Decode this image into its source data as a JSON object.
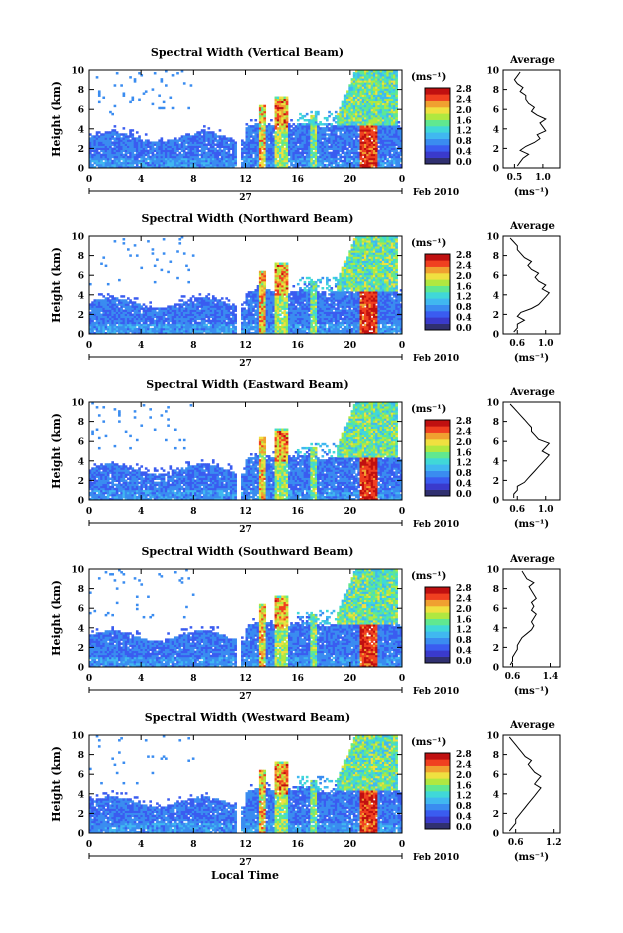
{
  "figure": {
    "colorbar_unit": "(ms⁻¹)",
    "colorbar_ticks": [
      "0.0",
      "0.4",
      "0.8",
      "1.2",
      "1.6",
      "2.0",
      "2.4",
      "2.8"
    ],
    "colorbar_colors": [
      "#303070",
      "#3a3acc",
      "#3a5cf0",
      "#3a8cf0",
      "#40b8f0",
      "#40d8d8",
      "#60e890",
      "#b0e840",
      "#f0e040",
      "#f0a030",
      "#f04020",
      "#c01010"
    ],
    "date_label": "Feb 2010",
    "day_label": "27",
    "average_title": "Average",
    "average_xlabel": "(ms⁻¹)",
    "xlabel": "Local Time"
  },
  "chart_data": [
    {
      "type": "heatmap",
      "title": "Spectral Width (Vertical Beam)",
      "ylabel": "Height (km)",
      "x_ticks": [
        "0",
        "4",
        "8",
        "12",
        "16",
        "20",
        "0"
      ],
      "y_ticks": [
        "0",
        "2",
        "4",
        "6",
        "8",
        "10"
      ],
      "xlim": [
        0,
        24
      ],
      "ylim": [
        0,
        10
      ],
      "profile": {
        "type": "line",
        "x_ticks": [
          "0.5",
          "1.0"
        ],
        "xlim": [
          0.3,
          1.3
        ],
        "ylim": [
          0,
          10
        ],
        "heights": [
          0.2,
          0.6,
          1.0,
          1.4,
          1.8,
          2.2,
          2.6,
          3.0,
          3.4,
          3.8,
          4.2,
          4.6,
          5.0,
          5.4,
          5.8,
          6.2,
          6.6,
          7.0,
          7.4,
          7.8,
          8.2,
          8.6,
          9.0,
          9.4,
          9.8
        ],
        "values": [
          0.55,
          0.6,
          0.65,
          0.75,
          0.6,
          0.7,
          0.85,
          0.95,
          0.9,
          1.05,
          1.0,
          0.95,
          1.05,
          0.9,
          0.8,
          0.85,
          0.75,
          0.7,
          0.7,
          0.6,
          0.65,
          0.55,
          0.5,
          0.55,
          0.6
        ]
      }
    },
    {
      "type": "heatmap",
      "title": "Spectral Width (Northward Beam)",
      "ylabel": "Height (km)",
      "x_ticks": [
        "0",
        "4",
        "8",
        "12",
        "16",
        "20",
        "0"
      ],
      "y_ticks": [
        "0",
        "2",
        "4",
        "6",
        "8",
        "10"
      ],
      "xlim": [
        0,
        24
      ],
      "ylim": [
        0,
        10
      ],
      "profile": {
        "type": "line",
        "x_ticks": [
          "0.6",
          "1.0"
        ],
        "xlim": [
          0.4,
          1.2
        ],
        "ylim": [
          0,
          10
        ],
        "heights": [
          0.2,
          0.6,
          1.0,
          1.4,
          1.8,
          2.2,
          2.6,
          3.0,
          3.4,
          3.8,
          4.2,
          4.6,
          5.0,
          5.4,
          5.8,
          6.2,
          6.6,
          7.0,
          7.4,
          7.8,
          8.2,
          8.6,
          9.0,
          9.4,
          9.8
        ],
        "values": [
          0.55,
          0.6,
          0.6,
          0.7,
          0.6,
          0.65,
          0.8,
          0.9,
          0.95,
          1.0,
          1.05,
          0.95,
          1.0,
          0.9,
          0.85,
          0.9,
          0.8,
          0.75,
          0.8,
          0.7,
          0.65,
          0.6,
          0.6,
          0.55,
          0.5
        ]
      }
    },
    {
      "type": "heatmap",
      "title": "Spectral Width (Eastward Beam)",
      "ylabel": "Height (km)",
      "x_ticks": [
        "0",
        "4",
        "8",
        "12",
        "16",
        "20",
        "0"
      ],
      "y_ticks": [
        "0",
        "2",
        "4",
        "6",
        "8",
        "10"
      ],
      "xlim": [
        0,
        24
      ],
      "ylim": [
        0,
        10
      ],
      "profile": {
        "type": "line",
        "x_ticks": [
          "0.6",
          "1.0"
        ],
        "xlim": [
          0.4,
          1.2
        ],
        "ylim": [
          0,
          10
        ],
        "heights": [
          0.2,
          0.6,
          1.0,
          1.4,
          1.8,
          2.2,
          2.6,
          3.0,
          3.4,
          3.8,
          4.2,
          4.6,
          5.0,
          5.4,
          5.8,
          6.2,
          6.6,
          7.0,
          7.4,
          7.8,
          8.2,
          8.6,
          9.0,
          9.4,
          9.8
        ],
        "values": [
          0.55,
          0.55,
          0.6,
          0.6,
          0.7,
          0.75,
          0.8,
          0.85,
          0.9,
          0.95,
          1.0,
          1.05,
          0.95,
          1.0,
          1.05,
          0.9,
          0.85,
          0.8,
          0.8,
          0.75,
          0.7,
          0.65,
          0.6,
          0.55,
          0.5
        ]
      }
    },
    {
      "type": "heatmap",
      "title": "Spectral Width (Southward Beam)",
      "ylabel": "Height (km)",
      "x_ticks": [
        "0",
        "4",
        "8",
        "12",
        "16",
        "20",
        "0"
      ],
      "y_ticks": [
        "0",
        "2",
        "4",
        "6",
        "8",
        "10"
      ],
      "xlim": [
        0,
        24
      ],
      "ylim": [
        0,
        10
      ],
      "profile": {
        "type": "line",
        "x_ticks": [
          "0.6",
          "1.4"
        ],
        "xlim": [
          0.4,
          1.6
        ],
        "ylim": [
          0,
          10
        ],
        "heights": [
          0.2,
          0.6,
          1.0,
          1.4,
          1.8,
          2.2,
          2.6,
          3.0,
          3.4,
          3.8,
          4.2,
          4.6,
          5.0,
          5.4,
          5.8,
          6.2,
          6.6,
          7.0,
          7.4,
          7.8,
          8.2,
          8.6,
          9.0,
          9.4,
          9.8
        ],
        "values": [
          0.55,
          0.6,
          0.6,
          0.65,
          0.7,
          0.7,
          0.75,
          0.8,
          0.9,
          1.0,
          1.05,
          1.0,
          1.05,
          1.1,
          1.0,
          1.05,
          1.0,
          1.1,
          1.05,
          1.0,
          0.95,
          1.05,
          0.9,
          0.85,
          0.8
        ]
      }
    },
    {
      "type": "heatmap",
      "title": "Spectral Width (Westward Beam)",
      "ylabel": "Height (km)",
      "x_ticks": [
        "0",
        "4",
        "8",
        "12",
        "16",
        "20",
        "0"
      ],
      "y_ticks": [
        "0",
        "2",
        "4",
        "6",
        "8",
        "10"
      ],
      "xlim": [
        0,
        24
      ],
      "ylim": [
        0,
        10
      ],
      "profile": {
        "type": "line",
        "x_ticks": [
          "0.6",
          "1.2"
        ],
        "xlim": [
          0.4,
          1.3
        ],
        "ylim": [
          0,
          10
        ],
        "heights": [
          0.2,
          0.6,
          1.0,
          1.4,
          1.8,
          2.2,
          2.6,
          3.0,
          3.4,
          3.8,
          4.2,
          4.6,
          5.0,
          5.4,
          5.8,
          6.2,
          6.6,
          7.0,
          7.4,
          7.8,
          8.2,
          8.6,
          9.0,
          9.4,
          9.8
        ],
        "values": [
          0.5,
          0.55,
          0.6,
          0.6,
          0.65,
          0.7,
          0.75,
          0.8,
          0.85,
          0.9,
          0.95,
          1.0,
          0.9,
          0.95,
          1.0,
          0.9,
          0.85,
          0.8,
          0.85,
          0.75,
          0.7,
          0.65,
          0.6,
          0.55,
          0.5
        ]
      }
    }
  ]
}
